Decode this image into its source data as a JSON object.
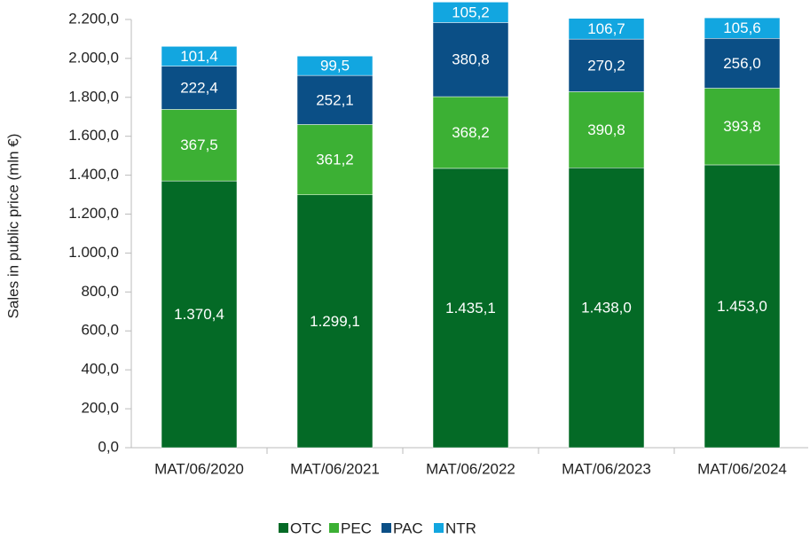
{
  "chart_data": {
    "type": "stacked_bar",
    "y_label": "Sales in public price (mln €)",
    "categories": [
      "MAT/06/2020",
      "MAT/06/2021",
      "MAT/06/2022",
      "MAT/06/2023",
      "MAT/06/2024"
    ],
    "series": [
      {
        "name": "OTC",
        "color": "#046a26",
        "values": [
          1370.4,
          1299.1,
          1435.1,
          1438.0,
          1453.0
        ],
        "value_labels": [
          "1.370,4",
          "1.299,1",
          "1.435,1",
          "1.438,0",
          "1.453,0"
        ]
      },
      {
        "name": "PEC",
        "color": "#3cb034",
        "values": [
          367.5,
          361.2,
          368.2,
          390.8,
          393.8
        ],
        "value_labels": [
          "367,5",
          "361,2",
          "368,2",
          "390,8",
          "393,8"
        ]
      },
      {
        "name": "PAC",
        "color": "#0b4f86",
        "values": [
          222.4,
          252.1,
          380.8,
          270.2,
          256.0
        ],
        "value_labels": [
          "222,4",
          "252,1",
          "380,8",
          "270,2",
          "256,0"
        ]
      },
      {
        "name": "NTR",
        "color": "#12a6e0",
        "values": [
          101.4,
          99.5,
          105.2,
          106.7,
          105.6
        ],
        "value_labels": [
          "101,4",
          "99,5",
          "105,2",
          "106,7",
          "105,6"
        ]
      }
    ],
    "ylim": [
      0,
      2300
    ],
    "yticks": [
      {
        "value": 0,
        "label": "0,0"
      },
      {
        "value": 200,
        "label": "200,0"
      },
      {
        "value": 400,
        "label": "400,0"
      },
      {
        "value": 600,
        "label": "600,0"
      },
      {
        "value": 800,
        "label": "800,0"
      },
      {
        "value": 1000,
        "label": "1.000,0"
      },
      {
        "value": 1200,
        "label": "1.200,0"
      },
      {
        "value": 1400,
        "label": "1.400,0"
      },
      {
        "value": 1600,
        "label": "1.600,0"
      },
      {
        "value": 1800,
        "label": "1.800,0"
      },
      {
        "value": 2000,
        "label": "2.000,0"
      },
      {
        "value": 2200,
        "label": "2.200,0"
      }
    ],
    "legend": "bottom"
  }
}
